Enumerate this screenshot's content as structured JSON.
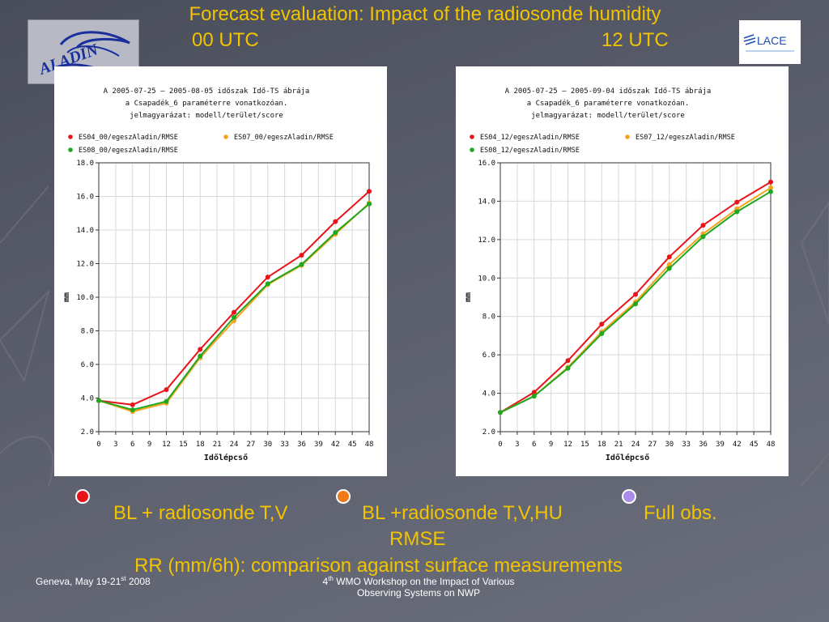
{
  "slide": {
    "title": "Forecast evaluation: Impact of the radiosonde humidity",
    "utc_left": "00 UTC",
    "utc_right": "12 UTC"
  },
  "logos": {
    "left": "ALADIN",
    "right": "LACE"
  },
  "chart_data": [
    {
      "type": "line",
      "header_lines": [
        "A 2005-07-25 – 2005-08-05 időszak Idő-TS ábrája",
        "a Csapadék_6 paraméterre vonatkozóan.",
        "jelmagyarázat: modell/terület/score"
      ],
      "legend": [
        "ES04_00/egeszAladin/RMSE",
        "ES07_00/egeszAladin/RMSE",
        "ES08_00/egeszAladin/RMSE"
      ],
      "xlabel": "Időlépcső",
      "ylabel": "mm",
      "xticks": [
        0,
        3,
        6,
        9,
        12,
        15,
        18,
        21,
        24,
        27,
        30,
        33,
        36,
        39,
        42,
        45,
        48
      ],
      "ylim": [
        2.0,
        18.0
      ],
      "yticks": [
        "2.0",
        "4.0",
        "6.0",
        "8.0",
        "10.0",
        "12.0",
        "14.0",
        "16.0",
        "18.0"
      ],
      "x": [
        0,
        6,
        12,
        18,
        24,
        30,
        36,
        42,
        48
      ],
      "series": [
        {
          "name": "ES04_00/egeszAladin/RMSE",
          "color": "#e8141c",
          "values": [
            3.85,
            3.6,
            4.5,
            6.9,
            9.1,
            11.2,
            12.5,
            14.5,
            16.3
          ]
        },
        {
          "name": "ES07_00/egeszAladin/RMSE",
          "color": "#f5a31e",
          "values": [
            3.85,
            3.2,
            3.7,
            6.4,
            8.6,
            10.75,
            11.9,
            13.75,
            15.6
          ]
        },
        {
          "name": "ES08_00/egeszAladin/RMSE",
          "color": "#1ea81e",
          "values": [
            3.85,
            3.3,
            3.8,
            6.5,
            8.8,
            10.8,
            11.95,
            13.85,
            15.55
          ]
        }
      ]
    },
    {
      "type": "line",
      "header_lines": [
        "A 2005-07-25 – 2005-09-04 időszak Idő-TS ábrája",
        "a Csapadék_6 paraméterre vonatkozóan.",
        "jelmagyarázat: modell/terület/score"
      ],
      "legend": [
        "ES04_12/egeszAladin/RMSE",
        "ES07_12/egeszAladin/RMSE",
        "ES08_12/egeszAladin/RMSE"
      ],
      "xlabel": "Időlépcső",
      "ylabel": "mm",
      "xticks": [
        0,
        3,
        6,
        9,
        12,
        15,
        18,
        21,
        24,
        27,
        30,
        33,
        36,
        39,
        42,
        45,
        48
      ],
      "ylim": [
        2.0,
        16.0
      ],
      "yticks": [
        "2.0",
        "4.0",
        "6.0",
        "8.0",
        "10.0",
        "12.0",
        "14.0",
        "16.0"
      ],
      "x": [
        0,
        6,
        12,
        18,
        24,
        30,
        36,
        42,
        48
      ],
      "series": [
        {
          "name": "ES04_12/egeszAladin/RMSE",
          "color": "#e8141c",
          "values": [
            3.0,
            4.05,
            5.7,
            7.6,
            9.15,
            11.1,
            12.75,
            13.95,
            15.0
          ]
        },
        {
          "name": "ES07_12/egeszAladin/RMSE",
          "color": "#f5a31e",
          "values": [
            3.0,
            3.85,
            5.35,
            7.2,
            8.75,
            10.7,
            12.3,
            13.6,
            14.7
          ]
        },
        {
          "name": "ES08_12/egeszAladin/RMSE",
          "color": "#1ea81e",
          "values": [
            3.0,
            3.85,
            5.3,
            7.1,
            8.65,
            10.5,
            12.15,
            13.45,
            14.5
          ]
        }
      ]
    }
  ],
  "legend_caption": {
    "item1": {
      "color": "#e8141c",
      "label": "BL + radiosonde T,V"
    },
    "item2": {
      "color": "#f07a1a",
      "label": "BL +radiosonde T,V,HU"
    },
    "item3": {
      "color": "#a98be8",
      "label": "Full obs."
    },
    "line2": "RMSE",
    "line3": "RR (mm/6h): comparison against surface measurements"
  },
  "footer": {
    "left_main": "Geneva, May 19-21",
    "left_sup": "st",
    "left_end": " 2008",
    "center_num": "4",
    "center_sup": "th",
    "center_line1": " WMO Workshop on the Impact of Various",
    "center_line2": "Observing Systems on NWP"
  }
}
